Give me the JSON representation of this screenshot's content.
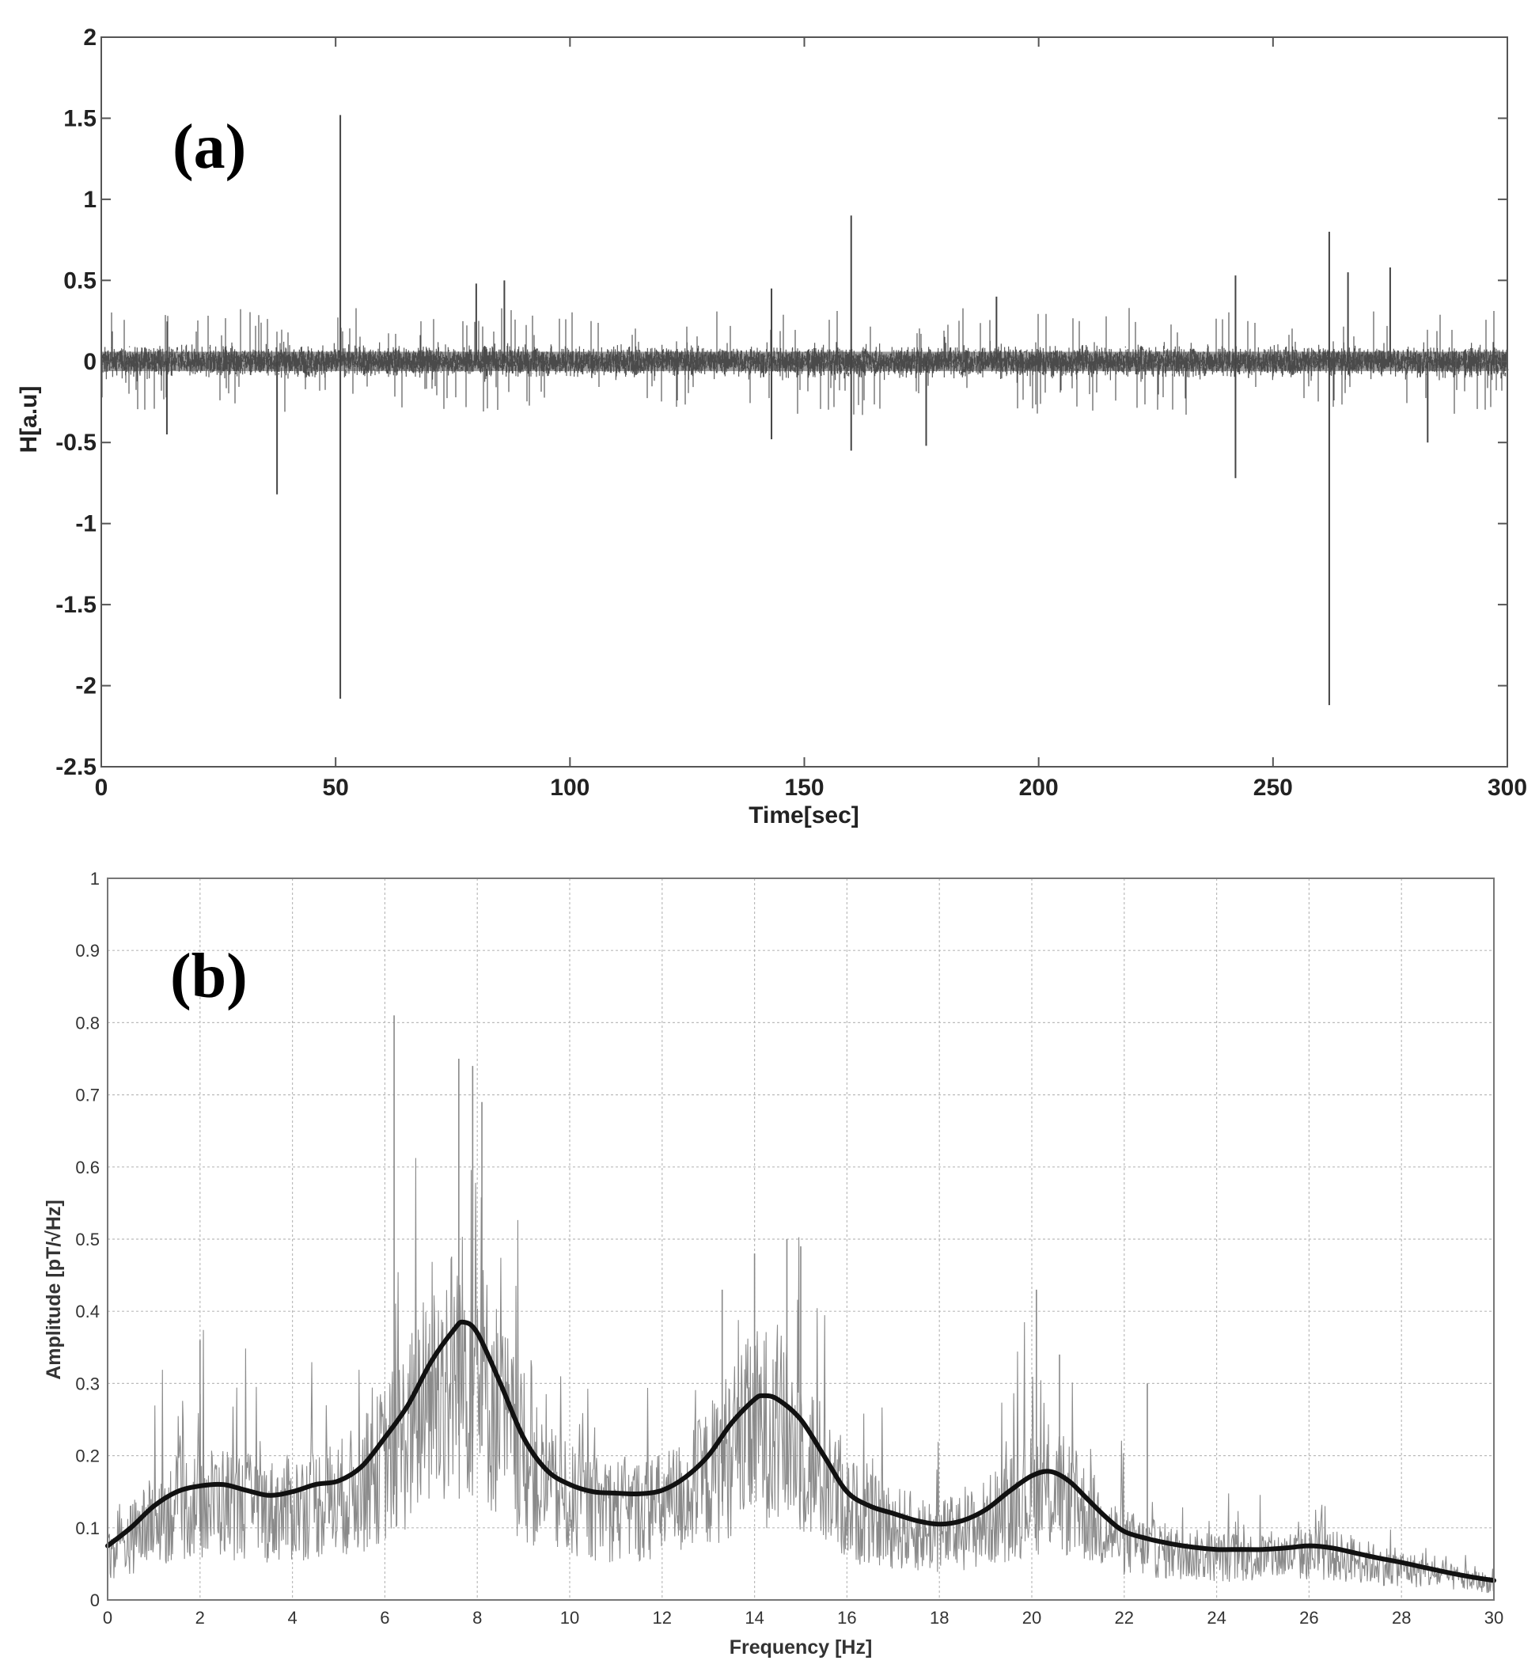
{
  "chart_data": [
    {
      "type": "line",
      "panel_label": "(a)",
      "xlabel": "Time[sec]",
      "ylabel": "H[a.u]",
      "xlim": [
        0,
        300
      ],
      "ylim": [
        -2.5,
        2
      ],
      "xticks": [
        "0",
        "50",
        "100",
        "150",
        "200",
        "250",
        "300"
      ],
      "yticks": [
        "2",
        "1.5",
        "1",
        "0.5",
        "0",
        "-0.5",
        "-1",
        "-1.5",
        "-2",
        "-2.5"
      ],
      "grid": false,
      "color": "#4a4a4a",
      "baseline_noise_amplitude": 0.15,
      "spikes": [
        {
          "x": 51,
          "y": 1.52
        },
        {
          "x": 51,
          "y": -2.08
        },
        {
          "x": 37.5,
          "y": -0.82
        },
        {
          "x": 14,
          "y": -0.45
        },
        {
          "x": 80,
          "y": 0.48
        },
        {
          "x": 86,
          "y": 0.5
        },
        {
          "x": 160,
          "y": 0.9
        },
        {
          "x": 160,
          "y": -0.55
        },
        {
          "x": 143,
          "y": 0.45
        },
        {
          "x": 143,
          "y": -0.48
        },
        {
          "x": 176,
          "y": -0.52
        },
        {
          "x": 191,
          "y": 0.4
        },
        {
          "x": 242,
          "y": 0.53
        },
        {
          "x": 242,
          "y": -0.72
        },
        {
          "x": 262,
          "y": 0.8
        },
        {
          "x": 262,
          "y": -2.12
        },
        {
          "x": 266,
          "y": 0.55
        },
        {
          "x": 275,
          "y": 0.58
        },
        {
          "x": 283,
          "y": -0.5
        }
      ]
    },
    {
      "type": "line",
      "panel_label": "(b)",
      "xlabel": "Frequency [Hz]",
      "ylabel": "Amplitude [pT/√Hz]",
      "xlim": [
        0,
        30
      ],
      "ylim": [
        0,
        1
      ],
      "xticks": [
        "0",
        "2",
        "4",
        "6",
        "8",
        "10",
        "12",
        "14",
        "16",
        "18",
        "20",
        "22",
        "24",
        "26",
        "28",
        "30"
      ],
      "yticks": [
        "1",
        "0.9",
        "0.8",
        "0.7",
        "0.6",
        "0.5",
        "0.4",
        "0.3",
        "0.2",
        "0.1",
        "0"
      ],
      "grid": true,
      "series": [
        {
          "style": "thin-gray",
          "color": "#8a8a8a",
          "peaks": [
            {
              "x": 2.0,
              "y": 0.36
            },
            {
              "x": 6.2,
              "y": 0.81
            },
            {
              "x": 7.6,
              "y": 0.75
            },
            {
              "x": 7.9,
              "y": 0.74
            },
            {
              "x": 8.1,
              "y": 0.69
            },
            {
              "x": 13.3,
              "y": 0.43
            },
            {
              "x": 14.0,
              "y": 0.48
            },
            {
              "x": 14.7,
              "y": 0.5
            },
            {
              "x": 15.0,
              "y": 0.49
            },
            {
              "x": 20.1,
              "y": 0.43
            },
            {
              "x": 20.6,
              "y": 0.34
            },
            {
              "x": 22.5,
              "y": 0.3
            }
          ]
        },
        {
          "style": "thick-black",
          "color": "#111111",
          "x": [
            0,
            0.5,
            1,
            1.5,
            2,
            2.5,
            3,
            3.5,
            4,
            4.5,
            5,
            5.5,
            6,
            6.5,
            7,
            7.5,
            7.7,
            8,
            8.5,
            9,
            9.5,
            10,
            10.5,
            11,
            11.5,
            12,
            12.5,
            13,
            13.5,
            14,
            14.2,
            14.5,
            15,
            15.5,
            16,
            16.5,
            17,
            17.5,
            18,
            18.5,
            19,
            19.5,
            20,
            20.4,
            20.8,
            21.2,
            21.6,
            22,
            22.5,
            23,
            23.5,
            24,
            24.5,
            25,
            25.5,
            26,
            26.5,
            27,
            27.5,
            28,
            28.5,
            29,
            29.5,
            30
          ],
          "y": [
            0.075,
            0.1,
            0.13,
            0.15,
            0.158,
            0.16,
            0.152,
            0.145,
            0.15,
            0.16,
            0.165,
            0.185,
            0.225,
            0.27,
            0.33,
            0.375,
            0.385,
            0.37,
            0.3,
            0.225,
            0.18,
            0.16,
            0.15,
            0.148,
            0.147,
            0.152,
            0.17,
            0.2,
            0.245,
            0.278,
            0.283,
            0.278,
            0.25,
            0.2,
            0.15,
            0.13,
            0.12,
            0.11,
            0.105,
            0.11,
            0.125,
            0.15,
            0.172,
            0.178,
            0.165,
            0.14,
            0.115,
            0.095,
            0.085,
            0.078,
            0.073,
            0.07,
            0.07,
            0.07,
            0.072,
            0.075,
            0.072,
            0.065,
            0.058,
            0.052,
            0.045,
            0.038,
            0.032,
            0.027
          ]
        }
      ]
    }
  ]
}
